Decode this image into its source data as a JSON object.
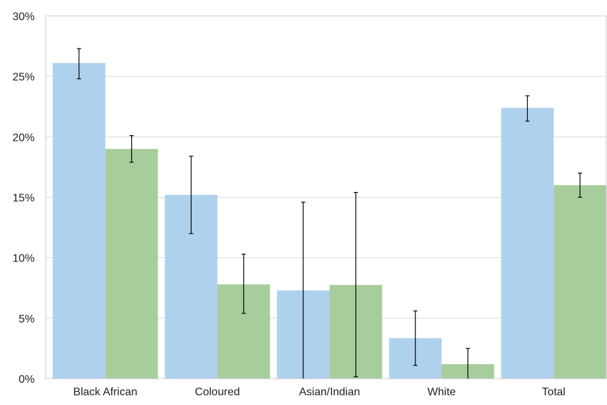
{
  "chart_data": {
    "type": "bar",
    "title": "",
    "xlabel": "",
    "ylabel": "",
    "ylim": [
      0,
      30
    ],
    "y_ticks": [
      0,
      5,
      10,
      15,
      20,
      25,
      30
    ],
    "y_tick_labels": [
      "0%",
      "5%",
      "10%",
      "15%",
      "20%",
      "25%",
      "30%"
    ],
    "categories": [
      "Black African",
      "Coloured",
      "Asian/Indian",
      "White",
      "Total"
    ],
    "grid": "horizontal",
    "legend": "none",
    "series": [
      {
        "color": "#aed1ee",
        "values": [
          26.1,
          15.2,
          7.3,
          3.35,
          22.4
        ],
        "error_low": [
          24.8,
          12.0,
          0.0,
          1.1,
          21.3
        ],
        "error_high": [
          27.3,
          18.4,
          14.6,
          5.6,
          23.4
        ]
      },
      {
        "color": "#a8cd9c",
        "values": [
          19.0,
          7.8,
          7.75,
          1.2,
          16.0
        ],
        "error_low": [
          17.9,
          5.4,
          0.15,
          0.0,
          15.0
        ],
        "error_high": [
          20.1,
          10.3,
          15.4,
          2.5,
          17.0
        ]
      }
    ]
  }
}
